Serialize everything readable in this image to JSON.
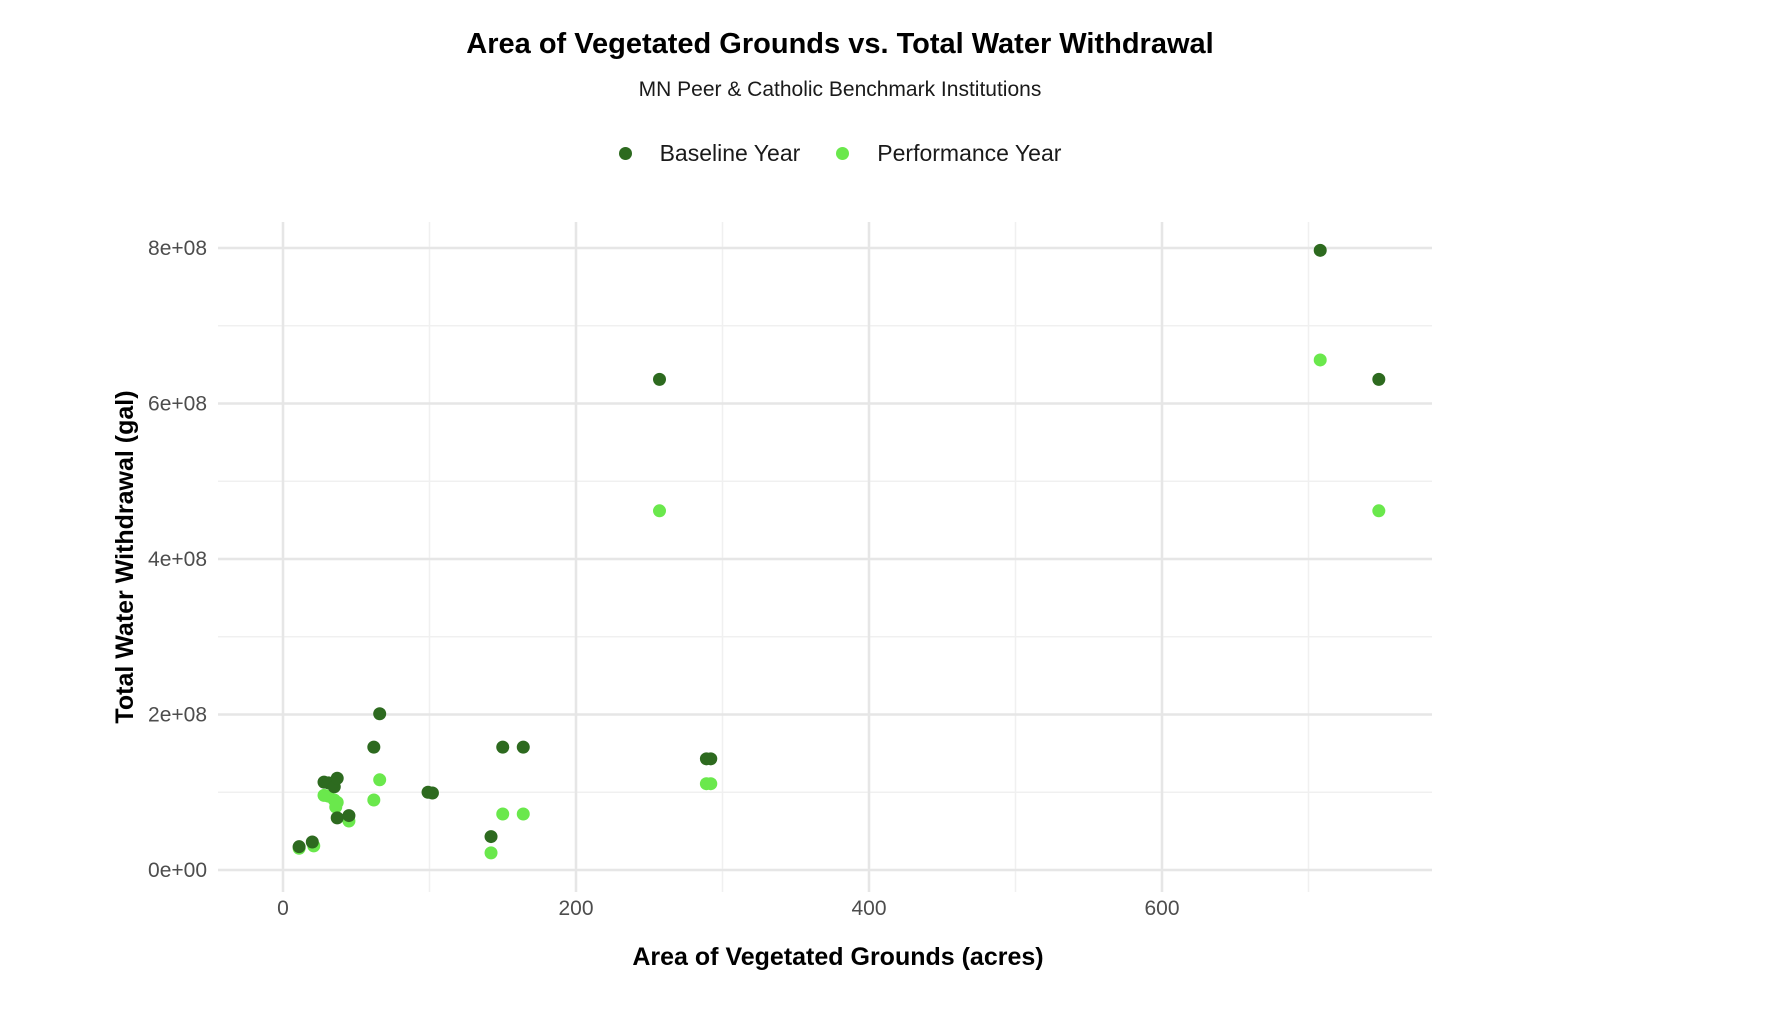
{
  "chart_data": {
    "type": "scatter",
    "title": "Area of Vegetated Grounds vs. Total Water Withdrawal",
    "subtitle": "MN Peer & Catholic Benchmark Institutions",
    "xlabel": "Area of Vegetated Grounds (acres)",
    "ylabel": "Total Water Withdrawal (gal)",
    "xlim": [
      -20,
      785
    ],
    "ylim": [
      -20000000,
      835000000
    ],
    "x_ticks": [
      0,
      200,
      400,
      600
    ],
    "x_tick_labels": [
      "0",
      "200",
      "400",
      "600"
    ],
    "y_ticks": [
      0,
      200000000,
      400000000,
      600000000,
      800000000
    ],
    "y_tick_labels": [
      "0e+00",
      "2e+08",
      "4e+08",
      "6e+08",
      "8e+08"
    ],
    "grid": true,
    "legend_position": "top",
    "series": [
      {
        "name": "Baseline Year",
        "color": "#2d6a1f",
        "points": [
          [
            11,
            30000000
          ],
          [
            20,
            36000000
          ],
          [
            28,
            113000000
          ],
          [
            31,
            112000000
          ],
          [
            35,
            107000000
          ],
          [
            37,
            118000000
          ],
          [
            37,
            67000000
          ],
          [
            45,
            70000000
          ],
          [
            62,
            158000000
          ],
          [
            66,
            201000000
          ],
          [
            99,
            100000000
          ],
          [
            102,
            99000000
          ],
          [
            142,
            43000000
          ],
          [
            150,
            158000000
          ],
          [
            164,
            158000000
          ],
          [
            257,
            631000000
          ],
          [
            289,
            143000000
          ],
          [
            292,
            143000000
          ],
          [
            708,
            797000000
          ],
          [
            748,
            631000000
          ]
        ]
      },
      {
        "name": "Performance Year",
        "color": "#6ae84c",
        "points": [
          [
            11,
            28000000
          ],
          [
            21,
            31000000
          ],
          [
            28,
            96000000
          ],
          [
            31,
            95000000
          ],
          [
            35,
            90000000
          ],
          [
            36,
            81000000
          ],
          [
            37,
            87000000
          ],
          [
            45,
            63000000
          ],
          [
            62,
            90000000
          ],
          [
            66,
            116000000
          ],
          [
            142,
            22000000
          ],
          [
            150,
            72000000
          ],
          [
            164,
            72000000
          ],
          [
            257,
            462000000
          ],
          [
            289,
            111000000
          ],
          [
            292,
            111000000
          ],
          [
            708,
            656000000
          ],
          [
            748,
            462000000
          ]
        ]
      }
    ]
  }
}
